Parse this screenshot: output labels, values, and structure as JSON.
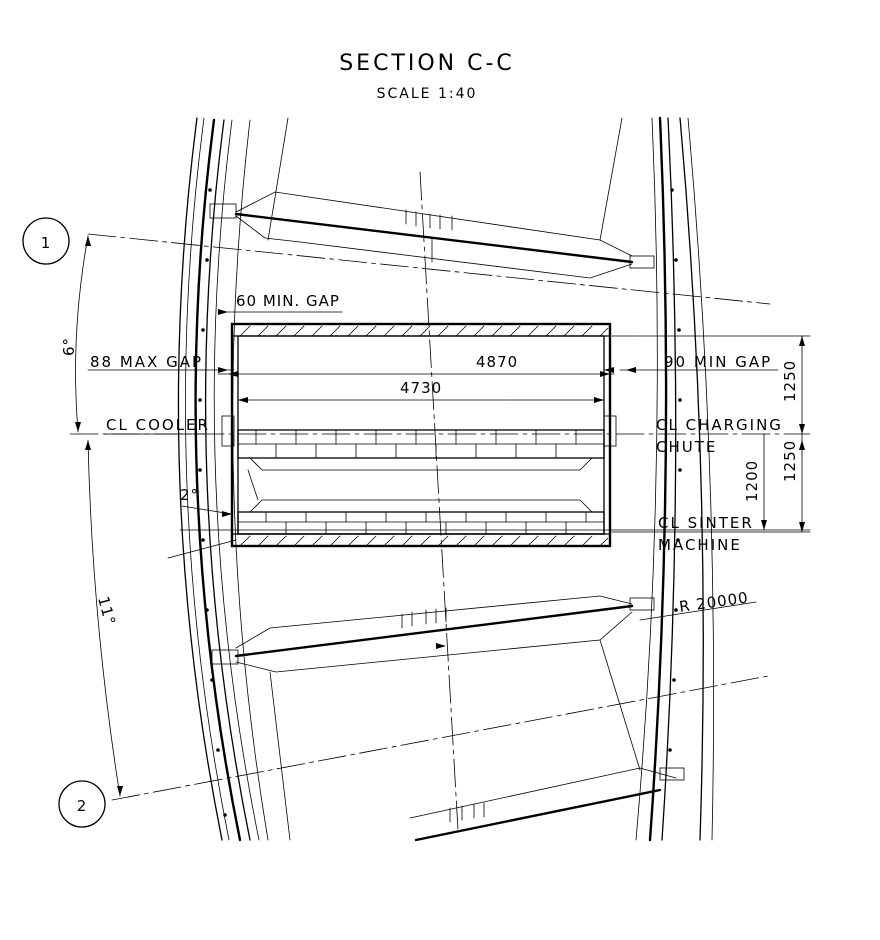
{
  "title": "SECTION C-C",
  "scale": "SCALE 1:40",
  "markers": {
    "one": "1",
    "two": "2"
  },
  "dimensions": {
    "min_gap_60": "60 MIN. GAP",
    "max_gap_88": "88 MAX GAP",
    "min_gap_90": "90 MIN GAP",
    "width_outer": "4870",
    "width_inner": "4730",
    "height_upper": "1250",
    "height_lower": "1250",
    "height_inner": "1200",
    "radius": "R 20000"
  },
  "angles": {
    "six": "6°",
    "two": "2°",
    "eleven": "11°"
  },
  "centerlines": {
    "cooler": "CL COOLER",
    "charging_1": "CL CHARGING",
    "charging_2": "CHUTE",
    "sinter_1": "CL SINTER",
    "sinter_2": "MACHINE"
  }
}
